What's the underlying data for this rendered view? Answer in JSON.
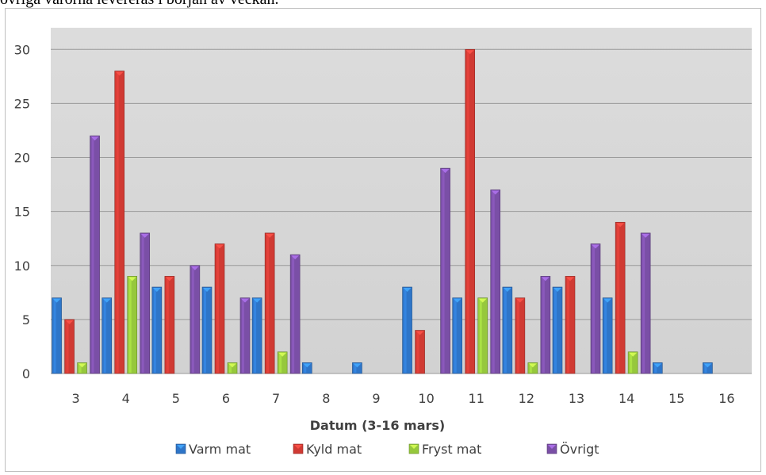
{
  "caption": "övriga varorna levereras i början av veckan.",
  "chart_data": {
    "type": "bar",
    "title": "",
    "xlabel": "Datum (3-16 mars)",
    "ylabel": "",
    "ylim": [
      0,
      32
    ],
    "yticks": [
      0,
      5,
      10,
      15,
      20,
      25,
      30
    ],
    "grid": true,
    "legend_position": "bottom",
    "categories": [
      "3",
      "4",
      "5",
      "6",
      "7",
      "8",
      "9",
      "10",
      "11",
      "12",
      "13",
      "14",
      "15",
      "16"
    ],
    "series": [
      {
        "name": "Varm mat",
        "color": "#2e75c8",
        "values": [
          7,
          7,
          8,
          8,
          7,
          1,
          1,
          8,
          7,
          8,
          8,
          7,
          1,
          1
        ]
      },
      {
        "name": "Kyld mat",
        "color": "#d03a33",
        "values": [
          5,
          28,
          9,
          12,
          13,
          0,
          0,
          4,
          30,
          7,
          9,
          14,
          0,
          0
        ]
      },
      {
        "name": "Fryst mat",
        "color": "#96c83c",
        "values": [
          1,
          9,
          0,
          1,
          2,
          0,
          0,
          0,
          7,
          1,
          0,
          2,
          0,
          0
        ]
      },
      {
        "name": "Övrigt",
        "color": "#7a4fa6",
        "values": [
          22,
          13,
          10,
          7,
          11,
          0,
          0,
          19,
          17,
          9,
          12,
          13,
          0,
          0
        ]
      }
    ]
  }
}
